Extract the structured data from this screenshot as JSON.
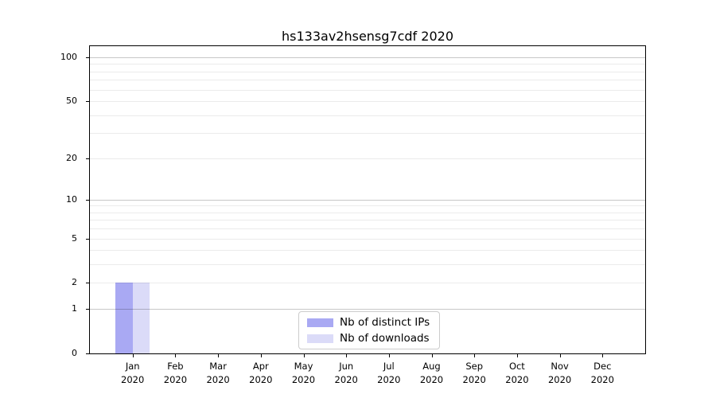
{
  "figure": {
    "background": "#ffffff",
    "axis_color": "#000000",
    "text_color": "#000000"
  },
  "chart_data": {
    "type": "bar",
    "title": "hs133av2hsensg7cdf 2020",
    "categories": [
      "Jan 2020",
      "Feb 2020",
      "Mar 2020",
      "Apr 2020",
      "May 2020",
      "Jun 2020",
      "Jul 2020",
      "Aug 2020",
      "Sep 2020",
      "Oct 2020",
      "Nov 2020",
      "Dec 2020"
    ],
    "series": [
      {
        "name": "Nb of distinct IPs",
        "color": "#a9a9f3",
        "values": [
          2,
          0,
          0,
          0,
          0,
          0,
          0,
          0,
          0,
          0,
          0,
          0
        ]
      },
      {
        "name": "Nb of downloads",
        "color": "#dbdbf8",
        "values": [
          2,
          0,
          0,
          0,
          0,
          0,
          0,
          0,
          0,
          0,
          0,
          0
        ]
      }
    ],
    "y_axis": {
      "scale": "log1p",
      "tick_labels": [
        100,
        50,
        20,
        10,
        5,
        2,
        1,
        0
      ],
      "major_gridlines": [
        1,
        10,
        100
      ],
      "minor_gridlines": [
        2,
        3,
        4,
        5,
        6,
        7,
        8,
        9,
        20,
        30,
        40,
        50,
        60,
        70,
        80,
        90
      ],
      "ylim": [
        0,
        119
      ]
    },
    "x_axis": {
      "tick_label_lines": 2
    },
    "legend": {
      "position": "lower center",
      "border_color": "#cccccc"
    },
    "grid": true
  }
}
